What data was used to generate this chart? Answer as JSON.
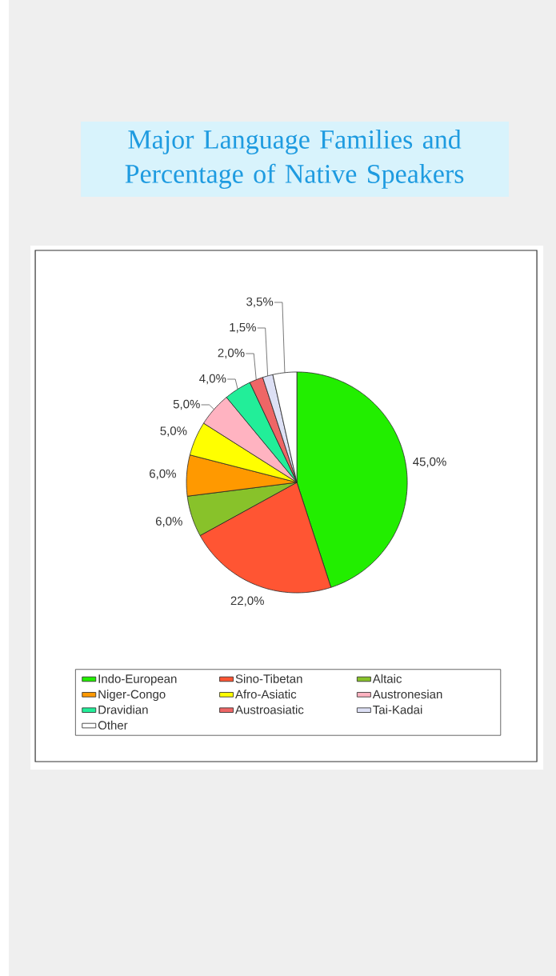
{
  "chart_data": {
    "type": "pie",
    "title": "Major Language Families and Percentage of Native Speakers",
    "categories": [
      "Indo-European",
      "Sino-Tibetan",
      "Altaic",
      "Niger-Congo",
      "Afro-Asiatic",
      "Austronesian",
      "Dravidian",
      "Austroasiatic",
      "Tai-Kadai",
      "Other"
    ],
    "values": [
      45,
      22,
      6,
      6,
      5,
      5,
      4,
      2,
      1.5,
      3.5
    ],
    "colors": [
      "#22ee00",
      "#ff5533",
      "#88c22a",
      "#ff9900",
      "#ffff00",
      "#ffb3c1",
      "#22ee99",
      "#ee6666",
      "#dde0f5",
      "#ffffff"
    ],
    "value_labels": [
      "45,0%",
      "22,0%",
      "6,0%",
      "6,0%",
      "5,0%",
      "5,0%",
      "4,0%",
      "2,0%",
      "1,5%",
      "3,5%"
    ],
    "legend": "bottom"
  }
}
